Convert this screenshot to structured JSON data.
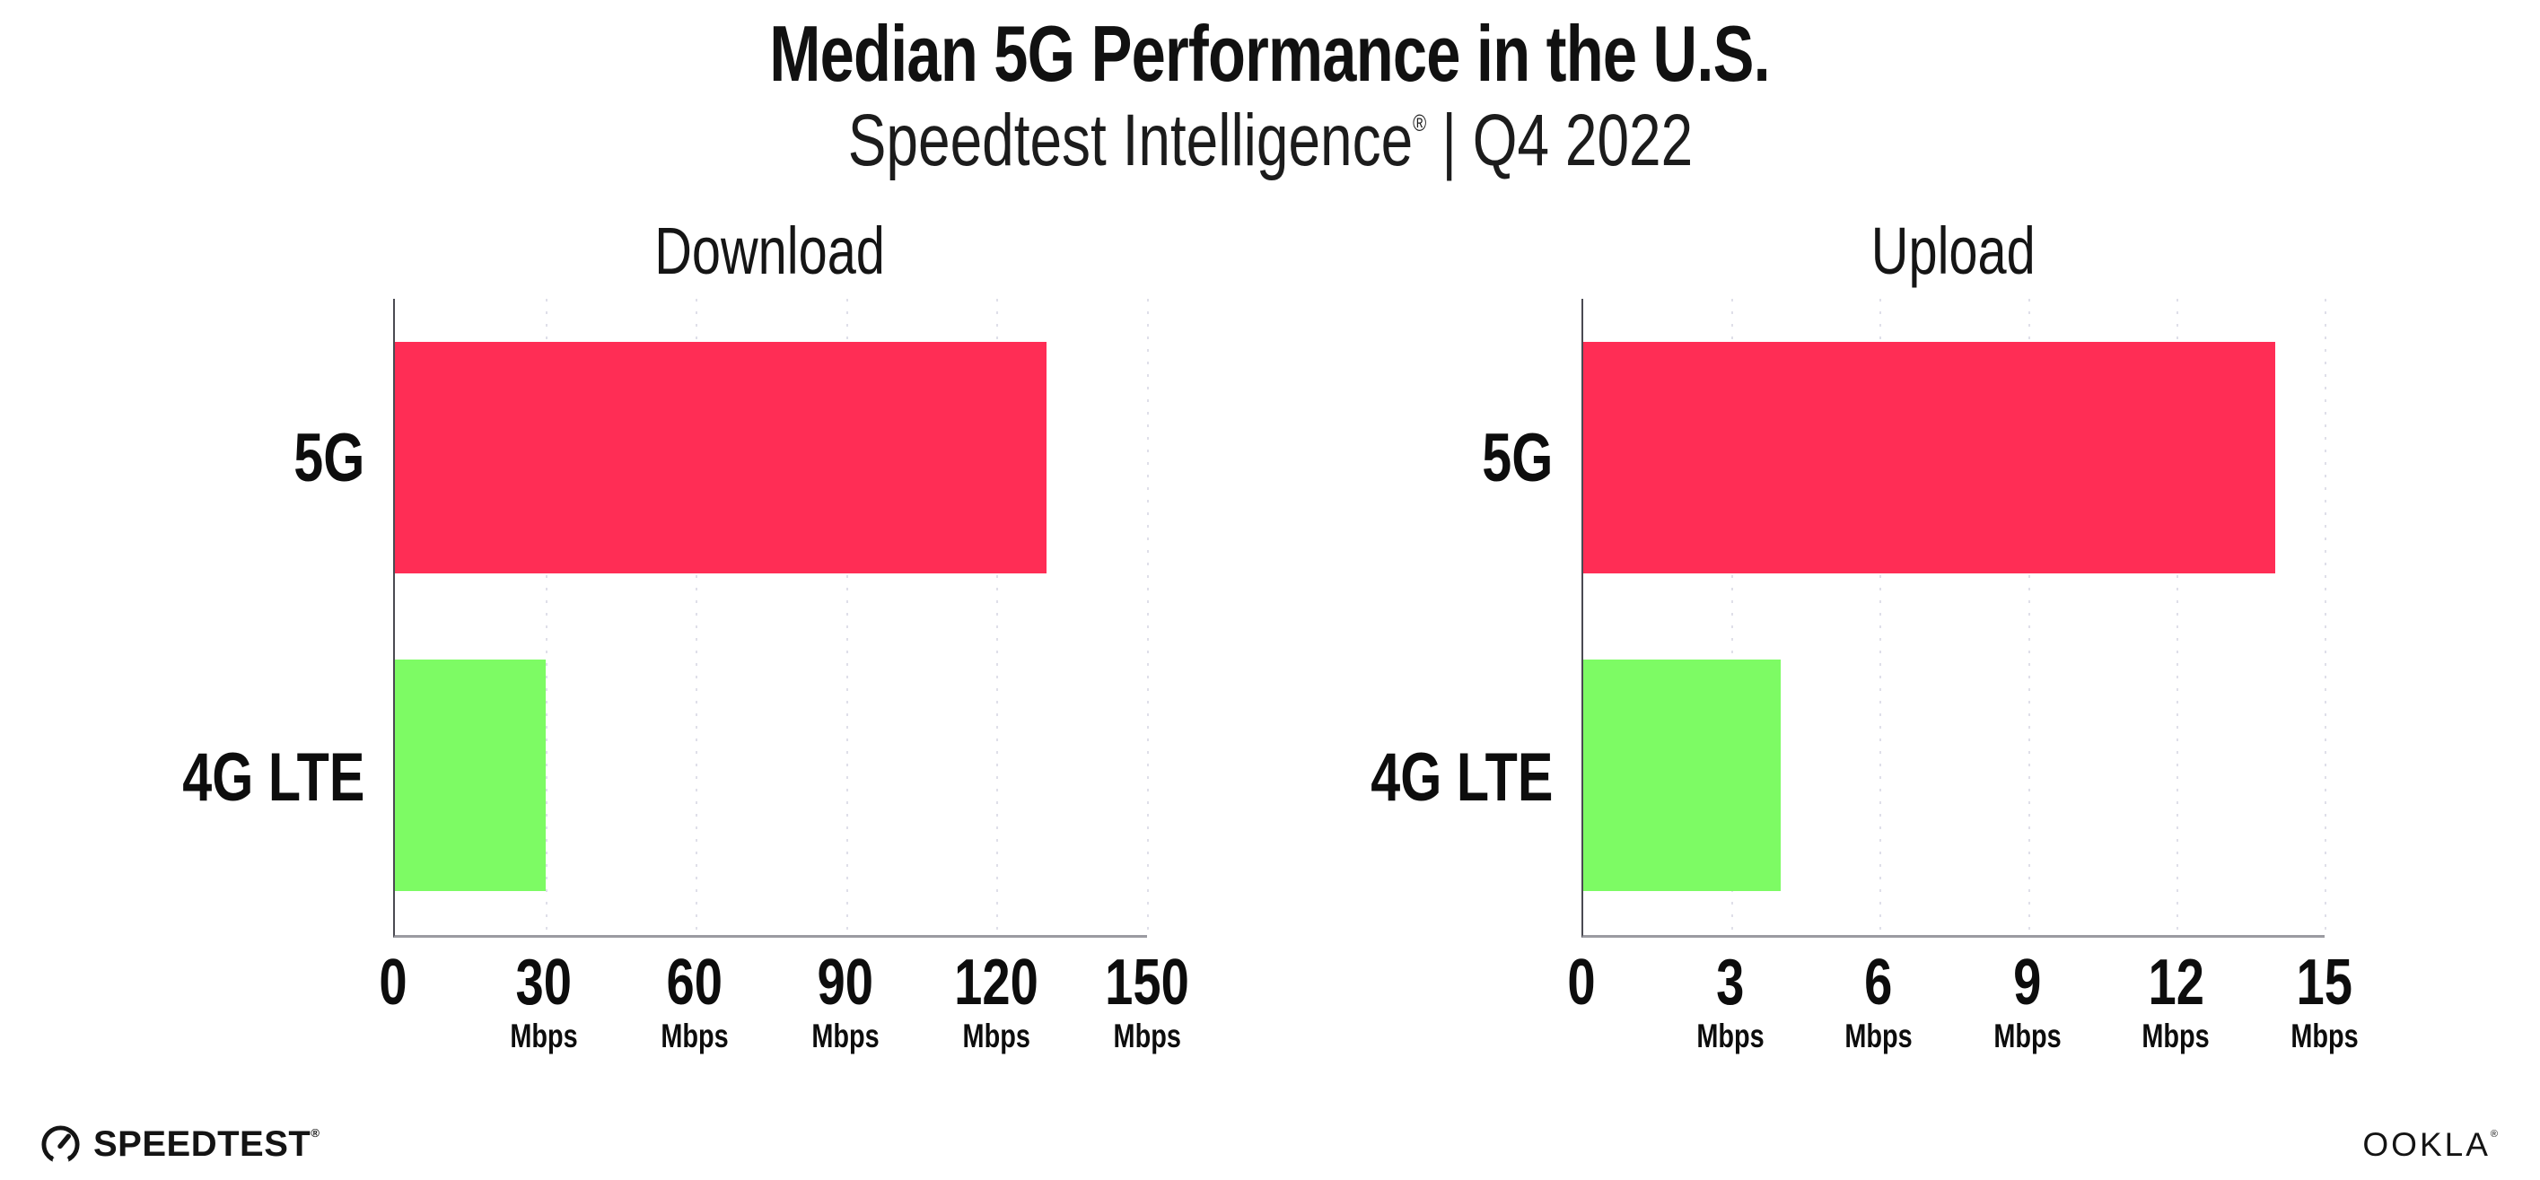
{
  "header": {
    "title": "Median 5G Performance in the U.S.",
    "subtitle": {
      "brand": "Speedtest Intelligence",
      "mark": "®",
      "tail": "| Q4 2022"
    }
  },
  "colors": {
    "bar_5g": "#FF2D55",
    "bar_4g_lte": "#7DFB64",
    "gridline": "#DFDFE9",
    "y_axis_line": "#4A4A52",
    "x_axis_line": "#9B9BA1",
    "text": "#111111"
  },
  "chart_data": [
    {
      "type": "bar",
      "orientation": "horizontal",
      "title": "Download",
      "categories": [
        "5G",
        "4G LTE"
      ],
      "values": [
        130,
        30
      ],
      "unit": "Mbps",
      "xlim": [
        0,
        150
      ],
      "xticks": [
        0,
        30,
        60,
        90,
        120,
        150
      ],
      "grid": "vertical-dotted",
      "legend": "none",
      "bar_colors": [
        "#FF2D55",
        "#7DFB64"
      ]
    },
    {
      "type": "bar",
      "orientation": "horizontal",
      "title": "Upload",
      "categories": [
        "5G",
        "4G LTE"
      ],
      "values": [
        14,
        4
      ],
      "unit": "Mbps",
      "xlim": [
        0,
        15
      ],
      "xticks": [
        0,
        3,
        6,
        9,
        12,
        15
      ],
      "grid": "vertical-dotted",
      "legend": "none",
      "bar_colors": [
        "#FF2D55",
        "#7DFB64"
      ]
    }
  ],
  "footer": {
    "speedtest": {
      "label": "SPEEDTEST",
      "mark": "®"
    },
    "ookla": {
      "label": "OOKLA",
      "mark": "®"
    }
  }
}
